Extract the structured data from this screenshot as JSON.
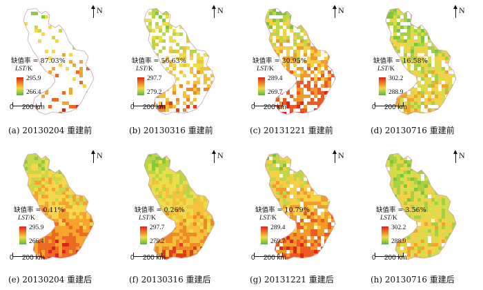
{
  "north_label": "N",
  "lst_label": "LST",
  "lst_unit": "/K",
  "scale_zero": "0",
  "scale_km": "200 km",
  "colors": {
    "hot": "#e0231b",
    "warm": "#f08a25",
    "mid": "#f6d34a",
    "cool": "#9ccf3c",
    "cold": "#4fb848",
    "border": "#c9a2b4"
  },
  "panels": [
    {
      "caption": "(a) 20130204 重建前",
      "missing": "缺值率 = 87.03%",
      "lst_max": "295.9",
      "lst_min": "266.4",
      "coverage": 0.13
    },
    {
      "caption": "(b) 20130316 重建前",
      "missing": "缺值率 = 56.63%",
      "lst_max": "297.7",
      "lst_min": "279.2",
      "coverage": 0.43
    },
    {
      "caption": "(c) 20131221 重建前",
      "missing": "缺值率 = 30.95%",
      "lst_max": "289.4",
      "lst_min": "269.7",
      "coverage": 0.69
    },
    {
      "caption": "(d) 20130716 重建前",
      "missing": "缺值率 = 16.58%",
      "lst_max": "302.2",
      "lst_min": "288.9",
      "coverage": 0.83
    },
    {
      "caption": "(e) 20130204 重建后",
      "missing": "缺值率 = 0.11%",
      "lst_max": "295.9",
      "lst_min": "266.4",
      "coverage": 1.0
    },
    {
      "caption": "(f) 20130316 重建后",
      "missing": "缺值率 = 0.26%",
      "lst_max": "297.7",
      "lst_min": "279.2",
      "coverage": 1.0
    },
    {
      "caption": "(g) 20131221 重建后",
      "missing": "缺值率 = 10.79%",
      "lst_max": "289.4",
      "lst_min": "269.7",
      "coverage": 0.89
    },
    {
      "caption": "(h) 20130716 重建后",
      "missing": "缺值率 = 3.56%",
      "lst_max": "302.2",
      "lst_min": "288.9",
      "coverage": 0.96
    }
  ]
}
